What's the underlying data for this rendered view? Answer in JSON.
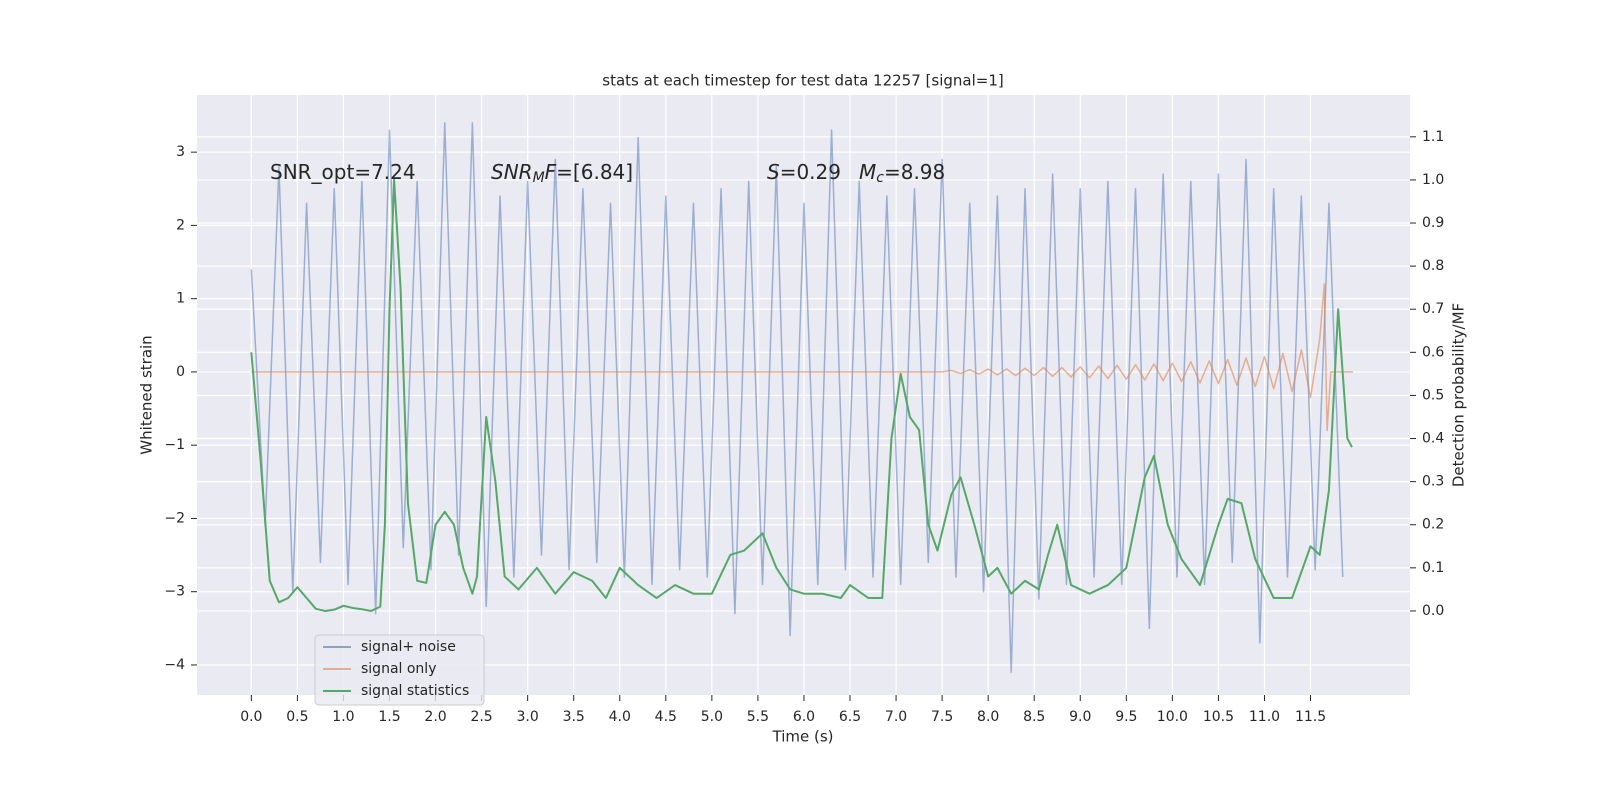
{
  "chart_data": {
    "type": "line",
    "title": "stats at each timestep for test data 12257 [signal=1]",
    "xlabel": "Time (s)",
    "ylabel": "Whitened strain",
    "y2label": "Detection probability/MF",
    "xlim": [
      -0.59,
      12.58
    ],
    "ylim": [
      -4.41,
      3.78
    ],
    "y2lim": [
      -0.195,
      1.197
    ],
    "xticks": [
      {
        "value": 0,
        "label": "0.0"
      },
      0.5,
      {
        "value": 1,
        "label": "1.0"
      },
      1.5,
      {
        "value": 2,
        "label": "2.0"
      },
      2.5,
      {
        "value": 3,
        "label": "3.0"
      },
      3.5,
      {
        "value": 4,
        "label": "4.0"
      },
      4.5,
      {
        "value": 5,
        "label": "5.0"
      },
      5.5,
      {
        "value": 6,
        "label": "6.0"
      },
      6.5,
      {
        "value": 7,
        "label": "7.0"
      },
      7.5,
      {
        "value": 8,
        "label": "8.0"
      },
      8.5,
      {
        "value": 9,
        "label": "9.0"
      },
      9.5,
      {
        "value": 10,
        "label": "10.0"
      },
      10.5,
      {
        "value": 11,
        "label": "11.0"
      },
      11.5
    ],
    "yticks": [
      {
        "value": -4,
        "label": "−4"
      },
      {
        "value": -3,
        "label": "−3"
      },
      {
        "value": -2,
        "label": "−2"
      },
      {
        "value": -1,
        "label": "−1"
      },
      0,
      1,
      2,
      3
    ],
    "y2ticks": [
      {
        "value": 0,
        "label": "0.0"
      },
      0.1,
      0.2,
      0.3,
      0.4,
      0.5,
      0.6,
      0.7,
      0.8,
      0.9,
      {
        "value": 1,
        "label": "1.0"
      },
      1.1
    ],
    "grid": true,
    "legend": "lower left",
    "annotations": [
      [
        {
          "text": "SNR_opt=7.24",
          "style": "normal"
        }
      ],
      [
        {
          "text": "SNR",
          "style": "italic"
        },
        {
          "text": "M",
          "style": "italic-sub"
        },
        {
          "text": "F=[6.84]",
          "style": "mixed"
        }
      ],
      [
        {
          "text": "S",
          "style": "italic"
        },
        {
          "text": "=0.29",
          "style": "normal"
        }
      ],
      [
        {
          "text": "M",
          "style": "italic"
        },
        {
          "text": "c",
          "style": "italic-sub"
        },
        {
          "text": "=8.98",
          "style": "normal"
        }
      ]
    ],
    "series": [
      {
        "name": "signal+ noise",
        "color": "#4c72b0",
        "axis": "y",
        "x": [
          0.0,
          0.15,
          0.3,
          0.45,
          0.6,
          0.75,
          0.9,
          1.05,
          1.2,
          1.35,
          1.5,
          1.65,
          1.8,
          1.95,
          2.1,
          2.25,
          2.4,
          2.55,
          2.7,
          2.85,
          3.0,
          3.15,
          3.3,
          3.45,
          3.6,
          3.75,
          3.9,
          4.05,
          4.2,
          4.35,
          4.5,
          4.65,
          4.8,
          4.95,
          5.1,
          5.25,
          5.4,
          5.55,
          5.7,
          5.85,
          6.0,
          6.15,
          6.3,
          6.45,
          6.6,
          6.75,
          6.9,
          7.05,
          7.2,
          7.35,
          7.5,
          7.65,
          7.8,
          7.95,
          8.1,
          8.25,
          8.4,
          8.55,
          8.7,
          8.85,
          9.0,
          9.15,
          9.3,
          9.45,
          9.6,
          9.75,
          9.9,
          10.05,
          10.2,
          10.35,
          10.5,
          10.65,
          10.8,
          10.95,
          11.1,
          11.25,
          11.4,
          11.55,
          11.7,
          11.85
        ],
        "values": [
          1.4,
          -2.1,
          2.8,
          -3.0,
          2.3,
          -2.6,
          2.5,
          -2.9,
          2.6,
          -3.3,
          3.3,
          -2.4,
          2.6,
          -2.7,
          3.4,
          -2.5,
          3.4,
          -3.2,
          2.4,
          -2.8,
          2.6,
          -2.5,
          2.9,
          -2.7,
          2.5,
          -2.6,
          2.3,
          -2.8,
          3.2,
          -2.9,
          2.4,
          -2.7,
          2.3,
          -2.8,
          2.5,
          -3.3,
          2.6,
          -2.9,
          2.8,
          -3.6,
          2.3,
          -2.9,
          3.3,
          -2.7,
          2.6,
          -2.8,
          2.4,
          -2.9,
          2.5,
          -2.6,
          2.9,
          -2.8,
          2.3,
          -3.0,
          2.4,
          -4.1,
          2.5,
          -3.1,
          2.7,
          -2.9,
          2.5,
          -2.8,
          2.6,
          -2.9,
          2.5,
          -3.5,
          2.7,
          -2.8,
          2.6,
          -2.9,
          2.7,
          -2.6,
          2.9,
          -3.7,
          2.5,
          -2.8,
          2.4,
          -2.7,
          2.3,
          -2.8
        ]
      },
      {
        "name": "signal only",
        "color": "#dd8452",
        "axis": "y",
        "x": [
          0,
          7.5,
          7.6,
          7.7,
          7.8,
          7.9,
          8.0,
          8.1,
          8.2,
          8.3,
          8.4,
          8.5,
          8.6,
          8.7,
          8.8,
          8.9,
          9.0,
          9.1,
          9.2,
          9.3,
          9.4,
          9.5,
          9.6,
          9.7,
          9.8,
          9.9,
          10.0,
          10.1,
          10.2,
          10.3,
          10.4,
          10.5,
          10.6,
          10.7,
          10.8,
          10.9,
          11.0,
          11.1,
          11.2,
          11.3,
          11.4,
          11.5,
          11.6,
          11.65,
          11.68,
          11.72,
          11.96
        ],
        "values": [
          0,
          0,
          0.02,
          -0.02,
          0.03,
          -0.03,
          0.04,
          -0.04,
          0.04,
          -0.05,
          0.05,
          -0.05,
          0.06,
          -0.06,
          0.06,
          -0.07,
          0.07,
          -0.08,
          0.08,
          -0.09,
          0.09,
          -0.1,
          0.1,
          -0.11,
          0.11,
          -0.12,
          0.12,
          -0.13,
          0.14,
          -0.15,
          0.15,
          -0.16,
          0.17,
          -0.18,
          0.19,
          -0.2,
          0.21,
          -0.23,
          0.25,
          -0.27,
          0.3,
          -0.35,
          0.45,
          1.2,
          -0.8,
          0,
          0
        ]
      },
      {
        "name": "signal statistics",
        "color": "#55a868",
        "axis": "y2",
        "x": [
          0.0,
          0.1,
          0.2,
          0.3,
          0.4,
          0.5,
          0.6,
          0.7,
          0.8,
          0.9,
          1.0,
          1.1,
          1.2,
          1.3,
          1.4,
          1.45,
          1.5,
          1.55,
          1.62,
          1.7,
          1.8,
          1.9,
          2.0,
          2.1,
          2.2,
          2.3,
          2.4,
          2.45,
          2.55,
          2.65,
          2.75,
          2.9,
          3.1,
          3.3,
          3.5,
          3.7,
          3.85,
          4.0,
          4.2,
          4.4,
          4.6,
          4.8,
          5.0,
          5.2,
          5.35,
          5.55,
          5.7,
          5.85,
          6.0,
          6.2,
          6.4,
          6.5,
          6.7,
          6.85,
          6.95,
          7.05,
          7.15,
          7.25,
          7.35,
          7.45,
          7.6,
          7.7,
          7.85,
          8.0,
          8.1,
          8.25,
          8.4,
          8.55,
          8.65,
          8.75,
          8.9,
          9.1,
          9.3,
          9.5,
          9.7,
          9.8,
          9.95,
          10.1,
          10.3,
          10.5,
          10.6,
          10.75,
          10.9,
          11.1,
          11.3,
          11.5,
          11.6,
          11.7,
          11.8,
          11.9,
          11.95
        ],
        "values": [
          0.6,
          0.35,
          0.07,
          0.02,
          0.03,
          0.055,
          0.03,
          0.005,
          0.0,
          0.003,
          0.012,
          0.007,
          0.004,
          0.0,
          0.01,
          0.2,
          0.7,
          1.0,
          0.75,
          0.25,
          0.07,
          0.065,
          0.2,
          0.23,
          0.2,
          0.1,
          0.04,
          0.08,
          0.45,
          0.3,
          0.08,
          0.05,
          0.1,
          0.04,
          0.09,
          0.07,
          0.03,
          0.1,
          0.06,
          0.03,
          0.06,
          0.04,
          0.04,
          0.13,
          0.14,
          0.18,
          0.1,
          0.05,
          0.04,
          0.04,
          0.03,
          0.06,
          0.03,
          0.03,
          0.4,
          0.55,
          0.45,
          0.42,
          0.2,
          0.14,
          0.27,
          0.31,
          0.2,
          0.08,
          0.1,
          0.04,
          0.07,
          0.05,
          0.13,
          0.2,
          0.06,
          0.04,
          0.06,
          0.1,
          0.31,
          0.36,
          0.2,
          0.12,
          0.06,
          0.2,
          0.26,
          0.25,
          0.12,
          0.03,
          0.03,
          0.15,
          0.13,
          0.28,
          0.7,
          0.4,
          0.38
        ]
      }
    ]
  }
}
